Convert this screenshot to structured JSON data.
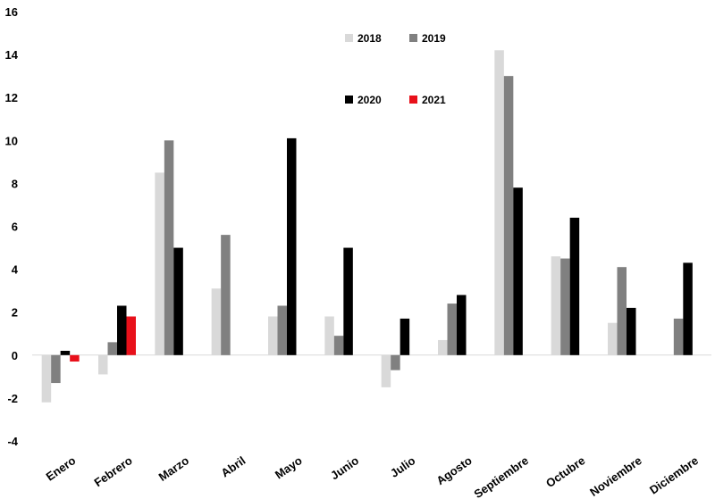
{
  "chart_data": {
    "type": "bar",
    "title": "",
    "xlabel": "",
    "ylabel": "",
    "ylim": [
      -4,
      16
    ],
    "yticks": [
      -4,
      -2,
      0,
      2,
      4,
      6,
      8,
      10,
      12,
      14,
      16
    ],
    "grid": false,
    "legend_position": "top-center",
    "categories": [
      "Enero",
      "Febrero",
      "Marzo",
      "Abril",
      "Mayo",
      "Junio",
      "Julio",
      "Agosto",
      "Septiembre",
      "Octubre",
      "Noviembre",
      "Diciembre"
    ],
    "series": [
      {
        "name": "2018",
        "color": "#d9d9d9",
        "values": [
          -2.2,
          -0.9,
          8.5,
          3.1,
          1.8,
          1.8,
          -1.5,
          0.7,
          14.2,
          4.6,
          1.5,
          null
        ]
      },
      {
        "name": "2019",
        "color": "#808080",
        "values": [
          -1.3,
          0.6,
          10.0,
          5.6,
          2.3,
          0.9,
          -0.7,
          2.4,
          13.0,
          4.5,
          4.1,
          1.7
        ]
      },
      {
        "name": "2020",
        "color": "#000000",
        "values": [
          0.2,
          2.3,
          5.0,
          null,
          10.1,
          5.0,
          1.7,
          2.8,
          7.8,
          6.4,
          2.2,
          4.3
        ]
      },
      {
        "name": "2021",
        "color": "#e8101a",
        "values": [
          -0.3,
          1.8,
          null,
          null,
          null,
          null,
          null,
          null,
          null,
          null,
          null,
          null
        ]
      }
    ]
  }
}
